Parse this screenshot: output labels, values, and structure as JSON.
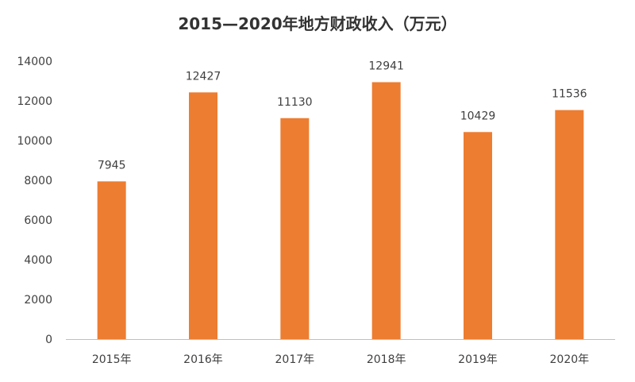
{
  "chart_data": {
    "type": "bar",
    "title": "2015—2020年地方财政收入（万元）",
    "categories": [
      "2015年",
      "2016年",
      "2017年",
      "2018年",
      "2019年",
      "2020年"
    ],
    "values": [
      7945,
      12427,
      11130,
      12941,
      10429,
      11536
    ],
    "xlabel": "",
    "ylabel": "",
    "ylim": [
      0,
      14000
    ],
    "yticks": [
      "0",
      "2000",
      "4000",
      "6000",
      "8000",
      "10000",
      "12000",
      "14000"
    ],
    "grid": false,
    "legend": "none",
    "colors": {
      "bar": "#ED7D31",
      "axis": "#BFBFBF",
      "text": "#404040"
    }
  }
}
